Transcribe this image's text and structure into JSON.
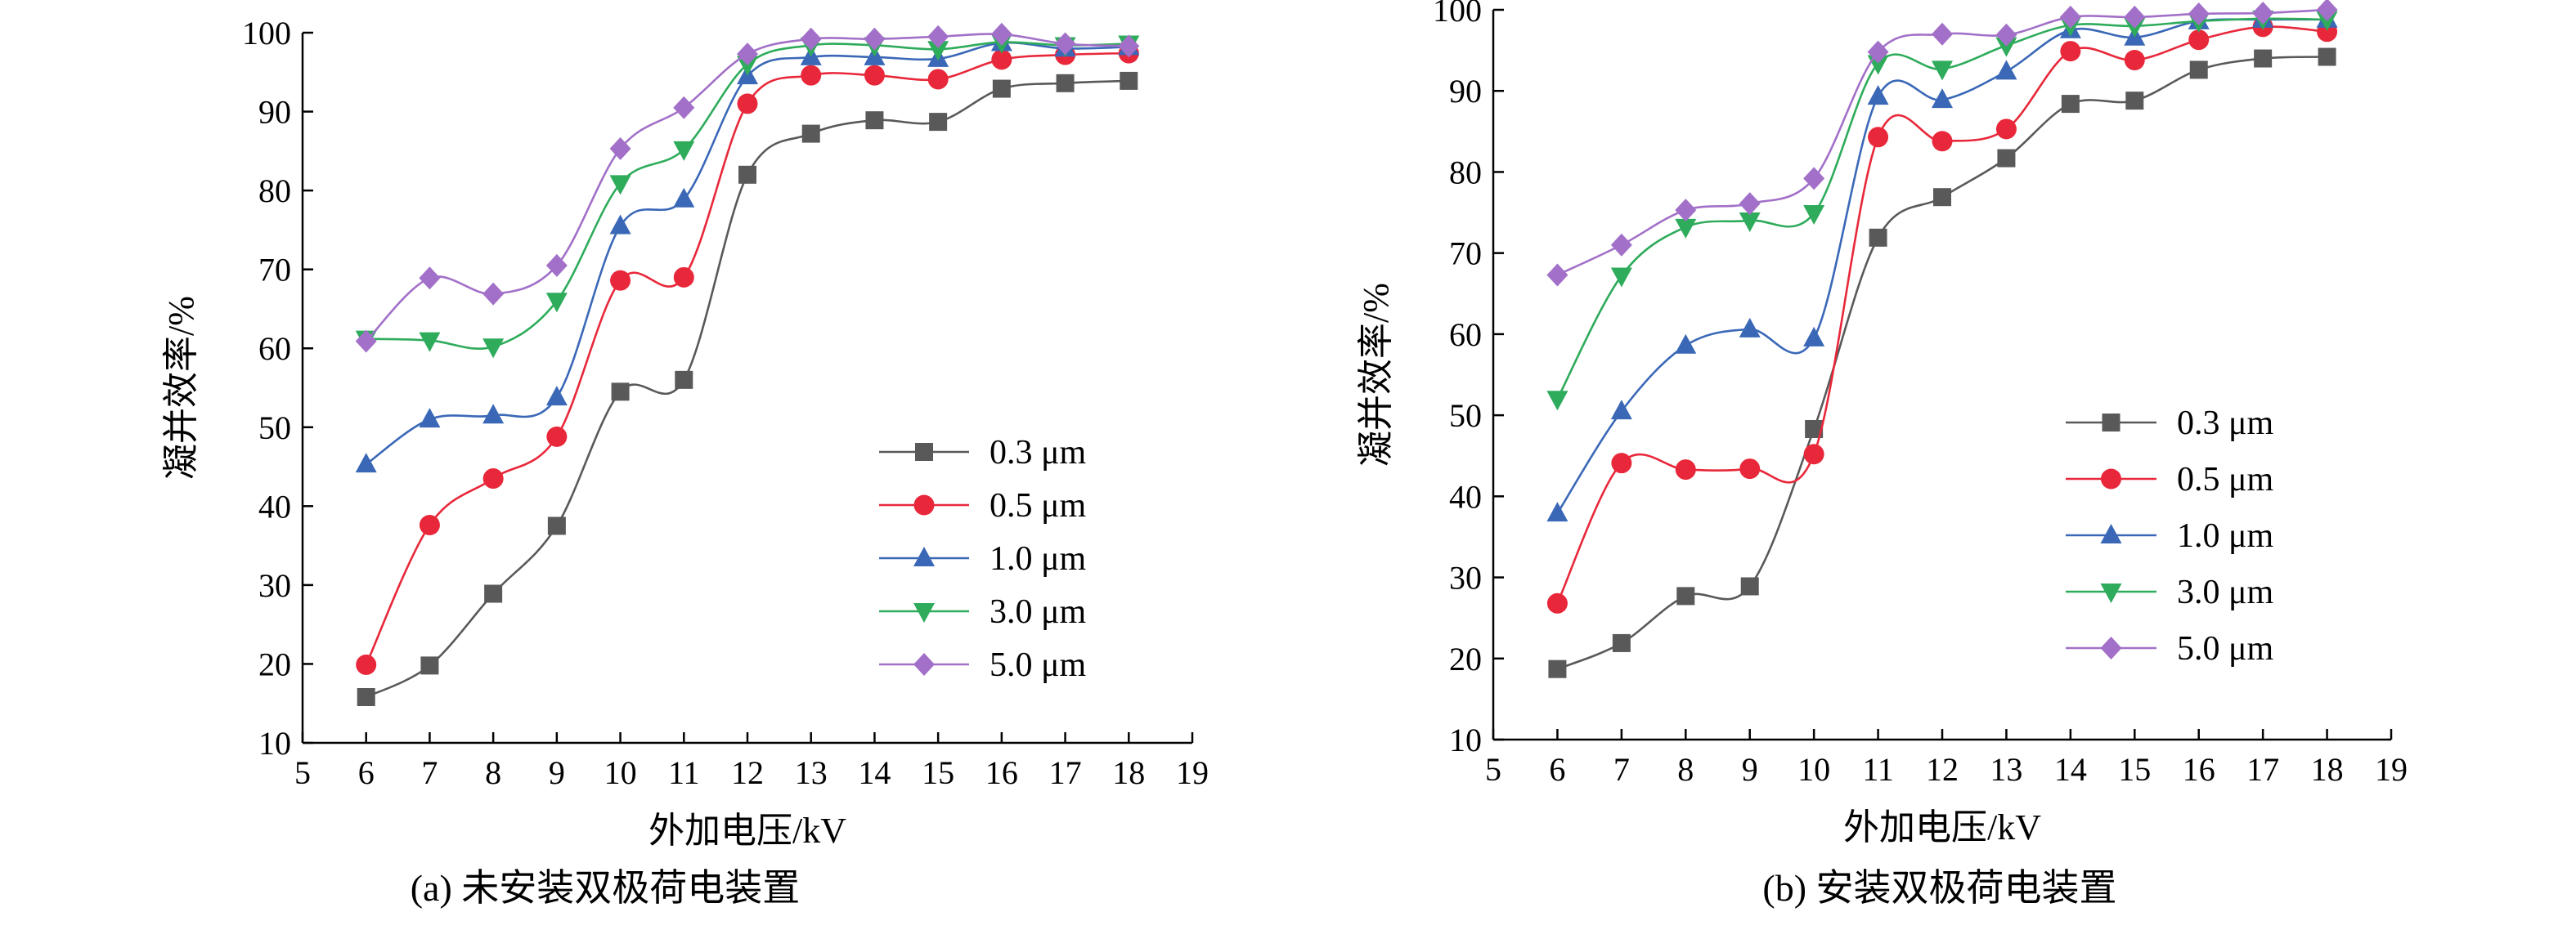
{
  "chart_data": [
    {
      "type": "line",
      "panel_caption": "(a) 未安装双极荷电装置",
      "xlabel": "外加电压/kV",
      "ylabel": "凝并效率/%",
      "xlim": [
        5,
        19
      ],
      "ylim": [
        10,
        100
      ],
      "xticks": [
        5,
        6,
        7,
        8,
        9,
        10,
        11,
        12,
        13,
        14,
        15,
        16,
        17,
        18,
        19
      ],
      "yticks": [
        10,
        20,
        30,
        40,
        50,
        60,
        70,
        80,
        90,
        100
      ],
      "grid": false,
      "legend_position": "lower-right",
      "x": [
        6,
        7,
        8,
        9,
        10,
        11,
        12,
        13,
        14,
        15,
        16,
        17,
        18
      ],
      "series": [
        {
          "name": "0.3 μm",
          "color": "#595959",
          "marker": "square",
          "values": [
            15.8,
            19.8,
            28.9,
            37.5,
            54.5,
            56.0,
            82.0,
            87.2,
            88.9,
            88.7,
            92.9,
            93.6,
            93.9
          ]
        },
        {
          "name": "0.5 μm",
          "color": "#e8283a",
          "marker": "circle",
          "values": [
            19.9,
            37.6,
            43.5,
            48.8,
            68.6,
            69.0,
            91.0,
            94.6,
            94.6,
            94.1,
            96.6,
            97.2,
            97.4
          ]
        },
        {
          "name": "1.0 μm",
          "color": "#3a68b7",
          "marker": "triangle-up",
          "values": [
            45.3,
            51.0,
            51.5,
            53.8,
            75.5,
            78.9,
            94.5,
            96.9,
            96.9,
            96.7,
            98.7,
            98.0,
            98.2
          ]
        },
        {
          "name": "3.0 μm",
          "color": "#2eab5b",
          "marker": "triangle-down",
          "values": [
            61.2,
            61.0,
            60.2,
            66.0,
            80.9,
            85.2,
            96.0,
            98.4,
            98.4,
            97.9,
            98.8,
            98.4,
            98.6
          ]
        },
        {
          "name": "5.0 μm",
          "color": "#a270c8",
          "marker": "diamond",
          "values": [
            60.9,
            68.9,
            66.9,
            70.5,
            85.3,
            90.5,
            97.3,
            99.2,
            99.2,
            99.5,
            99.8,
            98.6,
            98.3
          ]
        }
      ]
    },
    {
      "type": "line",
      "panel_caption": "(b) 安装双极荷电装置",
      "xlabel": "外加电压/kV",
      "ylabel": "凝并效率/%",
      "xlim": [
        5,
        19
      ],
      "ylim": [
        10,
        100
      ],
      "xticks": [
        5,
        6,
        7,
        8,
        9,
        10,
        11,
        12,
        13,
        14,
        15,
        16,
        17,
        18,
        19
      ],
      "yticks": [
        10,
        20,
        30,
        40,
        50,
        60,
        70,
        80,
        90,
        100
      ],
      "grid": false,
      "legend_position": "center-right",
      "x": [
        6,
        7,
        8,
        9,
        10,
        11,
        12,
        13,
        14,
        15,
        16,
        17,
        18
      ],
      "series": [
        {
          "name": "0.3 μm",
          "color": "#595959",
          "marker": "square",
          "values": [
            18.7,
            21.9,
            27.7,
            28.9,
            48.3,
            71.9,
            76.9,
            81.7,
            88.4,
            88.8,
            92.6,
            94.0,
            94.2
          ]
        },
        {
          "name": "0.5 μm",
          "color": "#e8283a",
          "marker": "circle",
          "values": [
            26.8,
            44.1,
            43.3,
            43.4,
            45.2,
            84.3,
            83.8,
            85.3,
            94.9,
            93.8,
            96.3,
            97.9,
            97.3
          ]
        },
        {
          "name": "1.0 μm",
          "color": "#3a68b7",
          "marker": "triangle-up",
          "values": [
            37.9,
            50.5,
            58.6,
            60.6,
            59.5,
            89.3,
            88.9,
            92.4,
            97.5,
            96.6,
            98.6,
            98.8,
            98.8
          ]
        },
        {
          "name": "3.0 μm",
          "color": "#2eab5b",
          "marker": "triangle-down",
          "values": [
            52.0,
            67.2,
            73.2,
            74.0,
            74.9,
            93.4,
            92.7,
            95.6,
            98.1,
            98.0,
            98.6,
            98.9,
            98.8
          ]
        },
        {
          "name": "5.0 μm",
          "color": "#a270c8",
          "marker": "diamond",
          "values": [
            67.3,
            71.0,
            75.3,
            76.1,
            79.2,
            94.8,
            97.0,
            96.9,
            99.1,
            99.1,
            99.5,
            99.6,
            100.0
          ]
        }
      ]
    }
  ]
}
